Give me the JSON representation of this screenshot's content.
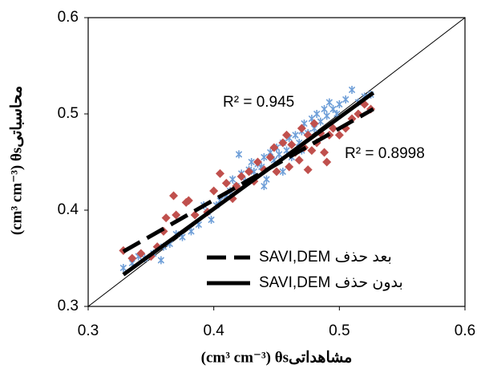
{
  "chart_data": {
    "type": "scatter",
    "x_label": "(cm³ cm⁻³) θsمشاهداتی",
    "y_label": "(cm³ cm⁻³) θsمحاسباتی",
    "xlim": [
      0.3,
      0.6
    ],
    "ylim": [
      0.3,
      0.6
    ],
    "xticks": [
      0.3,
      0.4,
      0.5,
      0.6
    ],
    "yticks": [
      0.3,
      0.4,
      0.5,
      0.6
    ],
    "grid": false,
    "series": [
      {
        "color": "#6f9fd8",
        "marker": "asterisk",
        "x": [
          0.328,
          0.335,
          0.34,
          0.345,
          0.352,
          0.358,
          0.36,
          0.365,
          0.37,
          0.375,
          0.382,
          0.388,
          0.392,
          0.395,
          0.398,
          0.402,
          0.405,
          0.41,
          0.413,
          0.415,
          0.418,
          0.42,
          0.422,
          0.425,
          0.428,
          0.43,
          0.432,
          0.435,
          0.438,
          0.44,
          0.442,
          0.445,
          0.448,
          0.45,
          0.452,
          0.455,
          0.458,
          0.46,
          0.462,
          0.465,
          0.468,
          0.47,
          0.472,
          0.475,
          0.478,
          0.48,
          0.482,
          0.485,
          0.488,
          0.49,
          0.492,
          0.495,
          0.498,
          0.5,
          0.505,
          0.51,
          0.515,
          0.52,
          0.525,
          0.455,
          0.47,
          0.44
        ],
        "y": [
          0.34,
          0.345,
          0.352,
          0.35,
          0.355,
          0.348,
          0.362,
          0.365,
          0.375,
          0.372,
          0.378,
          0.385,
          0.405,
          0.398,
          0.39,
          0.405,
          0.41,
          0.415,
          0.42,
          0.432,
          0.425,
          0.458,
          0.438,
          0.43,
          0.442,
          0.45,
          0.44,
          0.448,
          0.445,
          0.455,
          0.432,
          0.46,
          0.452,
          0.465,
          0.458,
          0.47,
          0.462,
          0.475,
          0.455,
          0.478,
          0.47,
          0.482,
          0.49,
          0.48,
          0.495,
          0.485,
          0.5,
          0.492,
          0.505,
          0.498,
          0.512,
          0.505,
          0.5,
          0.51,
          0.515,
          0.525,
          0.512,
          0.518,
          0.52,
          0.44,
          0.462,
          0.425
        ]
      },
      {
        "color": "#c0504d",
        "marker": "diamond",
        "x": [
          0.328,
          0.335,
          0.342,
          0.35,
          0.355,
          0.36,
          0.362,
          0.368,
          0.37,
          0.378,
          0.38,
          0.385,
          0.395,
          0.4,
          0.405,
          0.41,
          0.415,
          0.418,
          0.422,
          0.428,
          0.432,
          0.435,
          0.44,
          0.445,
          0.448,
          0.45,
          0.455,
          0.458,
          0.46,
          0.462,
          0.465,
          0.468,
          0.47,
          0.472,
          0.475,
          0.478,
          0.48,
          0.482,
          0.485,
          0.488,
          0.49,
          0.492,
          0.495,
          0.5,
          0.505,
          0.51,
          0.515,
          0.52,
          0.525,
          0.475
        ],
        "y": [
          0.358,
          0.35,
          0.355,
          0.352,
          0.362,
          0.378,
          0.392,
          0.415,
          0.395,
          0.408,
          0.41,
          0.395,
          0.398,
          0.42,
          0.438,
          0.428,
          0.412,
          0.425,
          0.435,
          0.44,
          0.43,
          0.45,
          0.442,
          0.455,
          0.465,
          0.44,
          0.47,
          0.478,
          0.445,
          0.468,
          0.46,
          0.452,
          0.485,
          0.465,
          0.478,
          0.462,
          0.49,
          0.47,
          0.48,
          0.46,
          0.45,
          0.478,
          0.485,
          0.478,
          0.485,
          0.495,
          0.5,
          0.51,
          0.505,
          0.442
        ]
      }
    ],
    "trendlines": [
      {
        "name": "SAVI,DEM بعد حذف",
        "style": "dashed",
        "r2_label": "R² = 0.8998",
        "x": [
          0.328,
          0.527
        ],
        "y": [
          0.357,
          0.505
        ]
      },
      {
        "name": "SAVI,DEM بدون حذف",
        "style": "solid",
        "r2_label": "R² = 0.945",
        "x": [
          0.328,
          0.527
        ],
        "y": [
          0.333,
          0.522
        ]
      }
    ]
  }
}
